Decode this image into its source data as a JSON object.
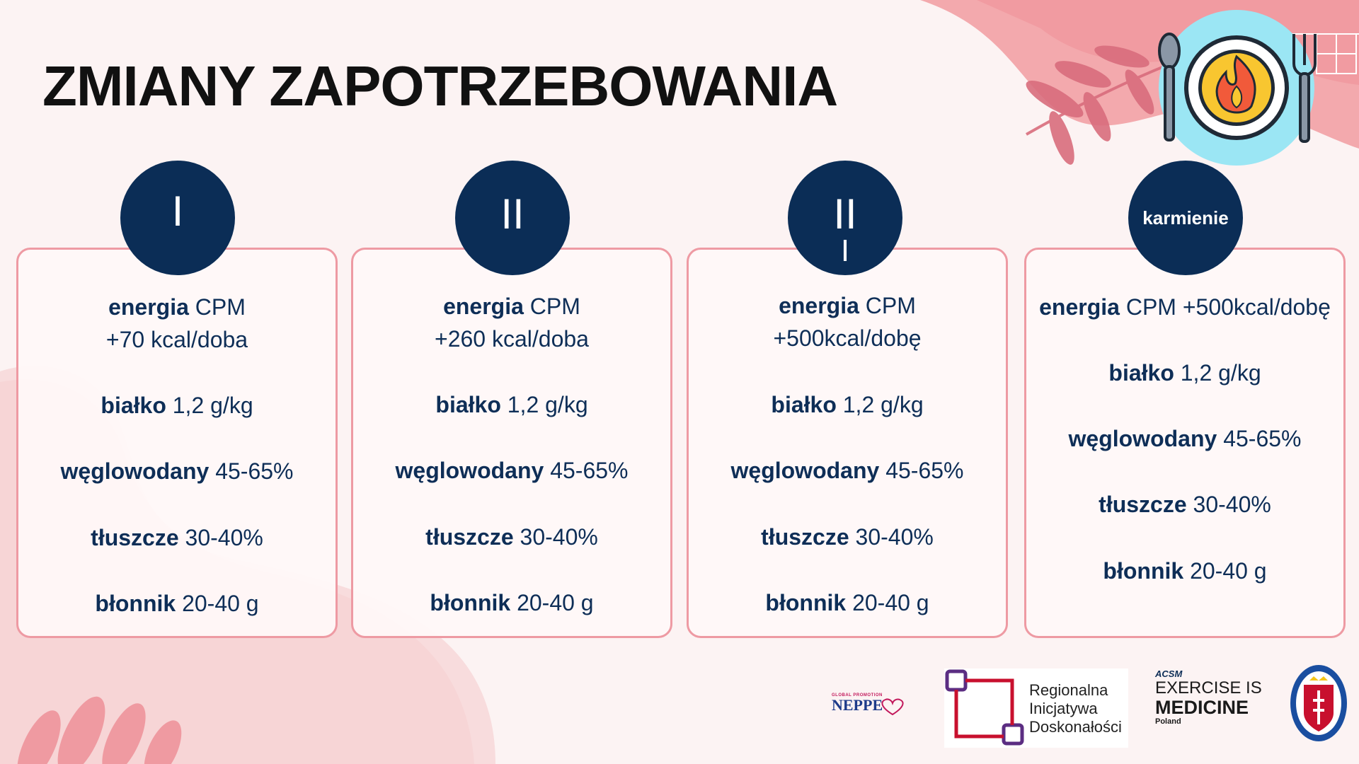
{
  "title": "ZMIANY ZAPOTRZEBOWANIA",
  "cards": [
    {
      "badge": "I",
      "energy_label": "energia",
      "energy_value": "CPM",
      "energy_extra": "+70 kcal/doba",
      "protein_label": "białko",
      "protein_value": "1,2 g/kg",
      "carbs_label": "węglowodany",
      "carbs_value": "45-65%",
      "fat_label": "tłuszcze",
      "fat_value": "30-40%",
      "fiber_label": "błonnik",
      "fiber_value": "20-40 g"
    },
    {
      "badge": "II",
      "energy_label": "energia",
      "energy_value": "CPM",
      "energy_extra": "+260 kcal/doba",
      "protein_label": "białko",
      "protein_value": "1,2 g/kg",
      "carbs_label": "węglowodany",
      "carbs_value": "45-65%",
      "fat_label": "tłuszcze",
      "fat_value": "30-40%",
      "fiber_label": "błonnik",
      "fiber_value": "20-40 g"
    },
    {
      "badge": "II",
      "badge_second": "I",
      "energy_label": "energia",
      "energy_value": "CPM",
      "energy_extra": "+500kcal/dobę",
      "protein_label": "białko",
      "protein_value": "1,2 g/kg",
      "carbs_label": "węglowodany",
      "carbs_value": "45-65%",
      "fat_label": "tłuszcze",
      "fat_value": "30-40%",
      "fiber_label": "błonnik",
      "fiber_value": "20-40 g"
    },
    {
      "badge": "karmienie",
      "energy_label": "energia",
      "energy_value": "CPM +500kcal/dobę",
      "protein_label": "białko",
      "protein_value": "1,2 g/kg",
      "carbs_label": "węglowodany",
      "carbs_value": "45-65%",
      "fat_label": "tłuszcze",
      "fat_value": "30-40%",
      "fiber_label": "błonnik",
      "fiber_value": "20-40 g"
    }
  ],
  "logos": {
    "neppe_small": "GLOBAL PROMOTION",
    "neppe": "NEPPE",
    "rid_line1": "Regionalna",
    "rid_line2": "Inicjatywa",
    "rid_line3": "Doskonałości",
    "acsm": "ACSM",
    "eim_line1": "EXERCISE IS",
    "eim_line2": "MEDICINE",
    "eim_line3": "Poland"
  },
  "colors": {
    "navy": "#0b2d56",
    "text": "#0e2e57",
    "card_border": "#ee9aa3",
    "blob": "#f4b7ba",
    "leaf": "#e58d98",
    "background": "#fcf3f3"
  },
  "icons": [
    "plate-fire-icon",
    "spoon-icon",
    "fork-icon",
    "leaf-branch-icon"
  ]
}
